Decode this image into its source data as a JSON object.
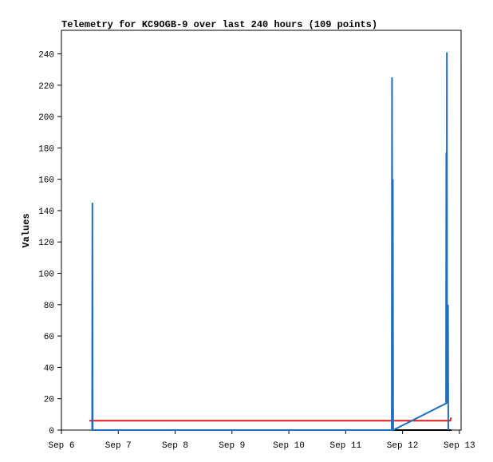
{
  "chart_data": {
    "type": "line",
    "title": "Telemetry for KC9OGB-9 over last 240 hours (109 points)",
    "y_label": "Values",
    "xlim": [
      6,
      13.03
    ],
    "xticks": [
      {
        "value": 6,
        "label": "Sep 6"
      },
      {
        "value": 7,
        "label": "Sep 7"
      },
      {
        "value": 8,
        "label": "Sep 8"
      },
      {
        "value": 9,
        "label": "Sep 9"
      },
      {
        "value": 10,
        "label": "Sep 10"
      },
      {
        "value": 11,
        "label": "Sep 11"
      },
      {
        "value": 12,
        "label": "Sep 12"
      },
      {
        "value": 13,
        "label": "Sep 13"
      }
    ],
    "ylim": [
      0,
      255
    ],
    "yticks": [
      0,
      20,
      40,
      60,
      80,
      100,
      120,
      140,
      160,
      180,
      200,
      220,
      240
    ],
    "series": [
      {
        "color": "#000000",
        "x": [
          6.54,
          12.86
        ],
        "values": [
          0,
          0
        ]
      },
      {
        "color": "#e41a1c",
        "x": [
          6.49,
          12.84,
          12.855
        ],
        "values": [
          6,
          6,
          8
        ]
      },
      {
        "color": "#1f6fbf",
        "x": [
          6.54,
          6.545,
          6.55,
          11.81,
          11.815,
          11.825,
          11.83,
          11.835,
          12.765,
          12.77,
          12.775,
          12.78,
          12.785,
          12.8,
          12.805
        ],
        "values": [
          0,
          145,
          0,
          0,
          225,
          0,
          160,
          0,
          17,
          177,
          17,
          241,
          17,
          80,
          0
        ]
      }
    ]
  }
}
